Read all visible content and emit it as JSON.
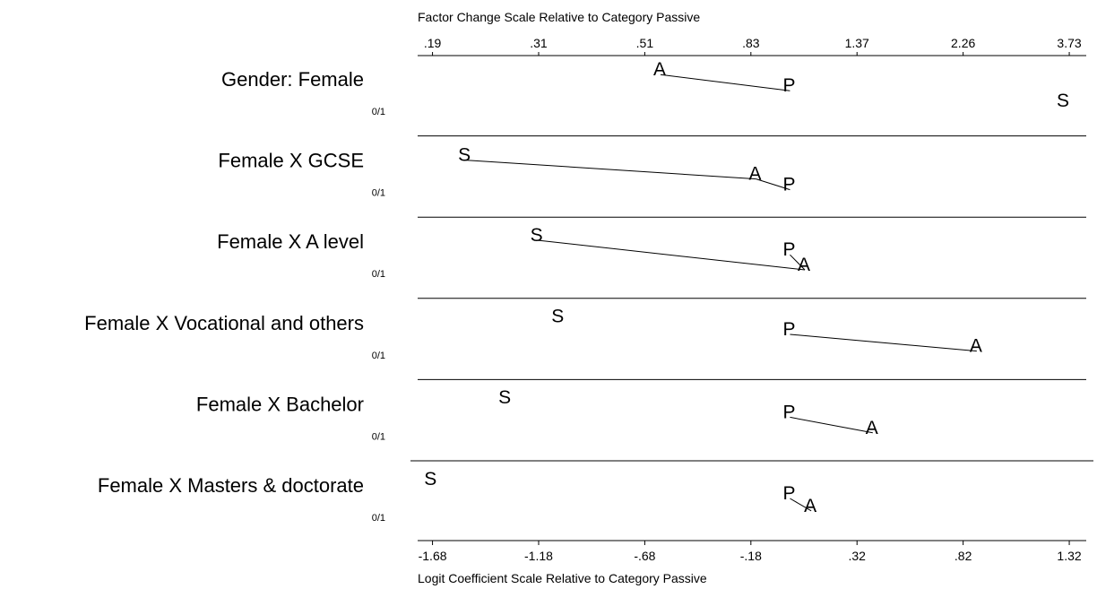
{
  "chart_data": {
    "type": "scatter",
    "title": "",
    "top_axis": {
      "label": "Factor Change Scale Relative to Category Passive",
      "ticks": [
        ".19",
        ".31",
        ".51",
        ".83",
        "1.37",
        "2.26",
        "3.73"
      ]
    },
    "bottom_axis": {
      "label": "Logit Coefficient Scale Relative to Category Passive",
      "ticks": [
        "-1.68",
        "-1.18",
        "-.68",
        "-.18",
        ".32",
        ".82",
        "1.32"
      ],
      "tick_values": [
        -1.68,
        -1.18,
        -0.68,
        -0.18,
        0.32,
        0.82,
        1.32
      ]
    },
    "xlim": [
      -1.75,
      1.4
    ],
    "rows": [
      {
        "label": "Gender: Female",
        "sub": "0/1",
        "points": [
          {
            "letter": "A",
            "x": -0.61,
            "level": 0.22
          },
          {
            "letter": "P",
            "x": 0.0,
            "level": 0.52
          },
          {
            "letter": "S",
            "x": 1.29,
            "level": 0.8
          }
        ],
        "connect": [
          [
            "A",
            "P"
          ]
        ]
      },
      {
        "label": "Female X GCSE",
        "sub": "0/1",
        "points": [
          {
            "letter": "S",
            "x": -1.53,
            "level": 0.3
          },
          {
            "letter": "A",
            "x": -0.16,
            "level": 0.65
          },
          {
            "letter": "P",
            "x": 0.0,
            "level": 0.85
          }
        ],
        "connect": [
          [
            "S",
            "A"
          ],
          [
            "A",
            "P"
          ]
        ]
      },
      {
        "label": "Female X A level",
        "sub": "0/1",
        "points": [
          {
            "letter": "S",
            "x": -1.19,
            "level": 0.28
          },
          {
            "letter": "P",
            "x": 0.0,
            "level": 0.55
          },
          {
            "letter": "A",
            "x": 0.07,
            "level": 0.83
          }
        ],
        "connect": [
          [
            "S",
            "A"
          ],
          [
            "P",
            "A"
          ]
        ]
      },
      {
        "label": "Female X Vocational and others",
        "sub": "0/1",
        "points": [
          {
            "letter": "S",
            "x": -1.09,
            "level": 0.28
          },
          {
            "letter": "P",
            "x": 0.0,
            "level": 0.52
          },
          {
            "letter": "A",
            "x": 0.88,
            "level": 0.83
          }
        ],
        "connect": [
          [
            "P",
            "A"
          ]
        ]
      },
      {
        "label": "Female X Bachelor",
        "sub": "0/1",
        "points": [
          {
            "letter": "S",
            "x": -1.34,
            "level": 0.28
          },
          {
            "letter": "P",
            "x": 0.0,
            "level": 0.55
          },
          {
            "letter": "A",
            "x": 0.39,
            "level": 0.84
          }
        ],
        "connect": [
          [
            "P",
            "A"
          ]
        ]
      },
      {
        "label": "Female X Masters & doctorate",
        "sub": "0/1",
        "points": [
          {
            "letter": "S",
            "x": -1.69,
            "level": 0.28
          },
          {
            "letter": "P",
            "x": 0.0,
            "level": 0.55
          },
          {
            "letter": "A",
            "x": 0.1,
            "level": 0.78
          }
        ],
        "connect": [
          [
            "P",
            "A"
          ]
        ]
      }
    ]
  }
}
